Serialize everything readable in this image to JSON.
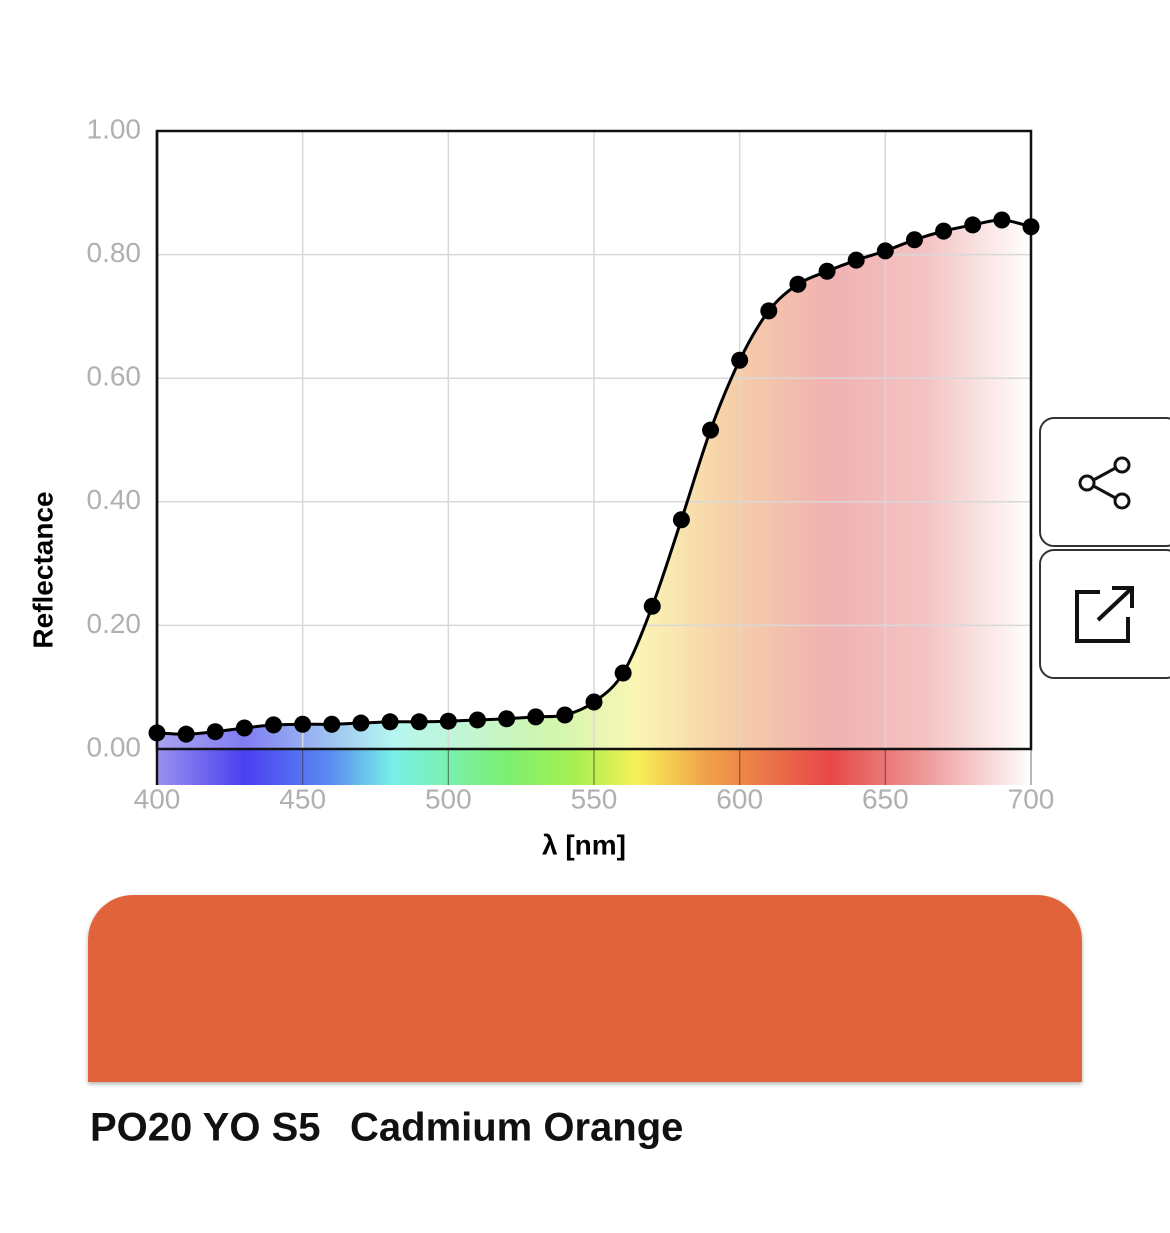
{
  "chart_data": {
    "type": "line",
    "x": [
      400,
      410,
      420,
      430,
      440,
      450,
      460,
      470,
      480,
      490,
      500,
      510,
      520,
      530,
      540,
      550,
      560,
      570,
      580,
      590,
      600,
      610,
      620,
      630,
      640,
      650,
      660,
      670,
      680,
      690,
      700
    ],
    "series": [
      {
        "color": "#000000",
        "values": [
          0.026,
          0.024,
          0.028,
          0.034,
          0.039,
          0.04,
          0.04,
          0.042,
          0.044,
          0.044,
          0.045,
          0.047,
          0.049,
          0.052,
          0.055,
          0.076,
          0.123,
          0.231,
          0.371,
          0.516,
          0.629,
          0.709,
          0.752,
          0.773,
          0.791,
          0.806,
          0.824,
          0.838,
          0.848,
          0.856,
          0.845
        ]
      }
    ],
    "xlim": [
      400,
      700
    ],
    "xticks": [
      400,
      450,
      500,
      550,
      600,
      650,
      700
    ],
    "ylim": [
      0,
      1
    ],
    "yticks": [
      {
        "value": 0,
        "label": "0.00"
      },
      {
        "value": 0.2,
        "label": "0.20"
      },
      {
        "value": 0.4,
        "label": "0.40"
      },
      {
        "value": 0.6,
        "label": "0.60"
      },
      {
        "value": 0.8,
        "label": "0.80"
      },
      {
        "value": 1,
        "label": "1.00"
      }
    ],
    "x_label": "λ [nm]",
    "y_label": "Reflectance",
    "grid": true
  },
  "swatch": {
    "color": "#e0643a",
    "code": "PO20 YO S5",
    "name": "Cadmium Orange"
  }
}
